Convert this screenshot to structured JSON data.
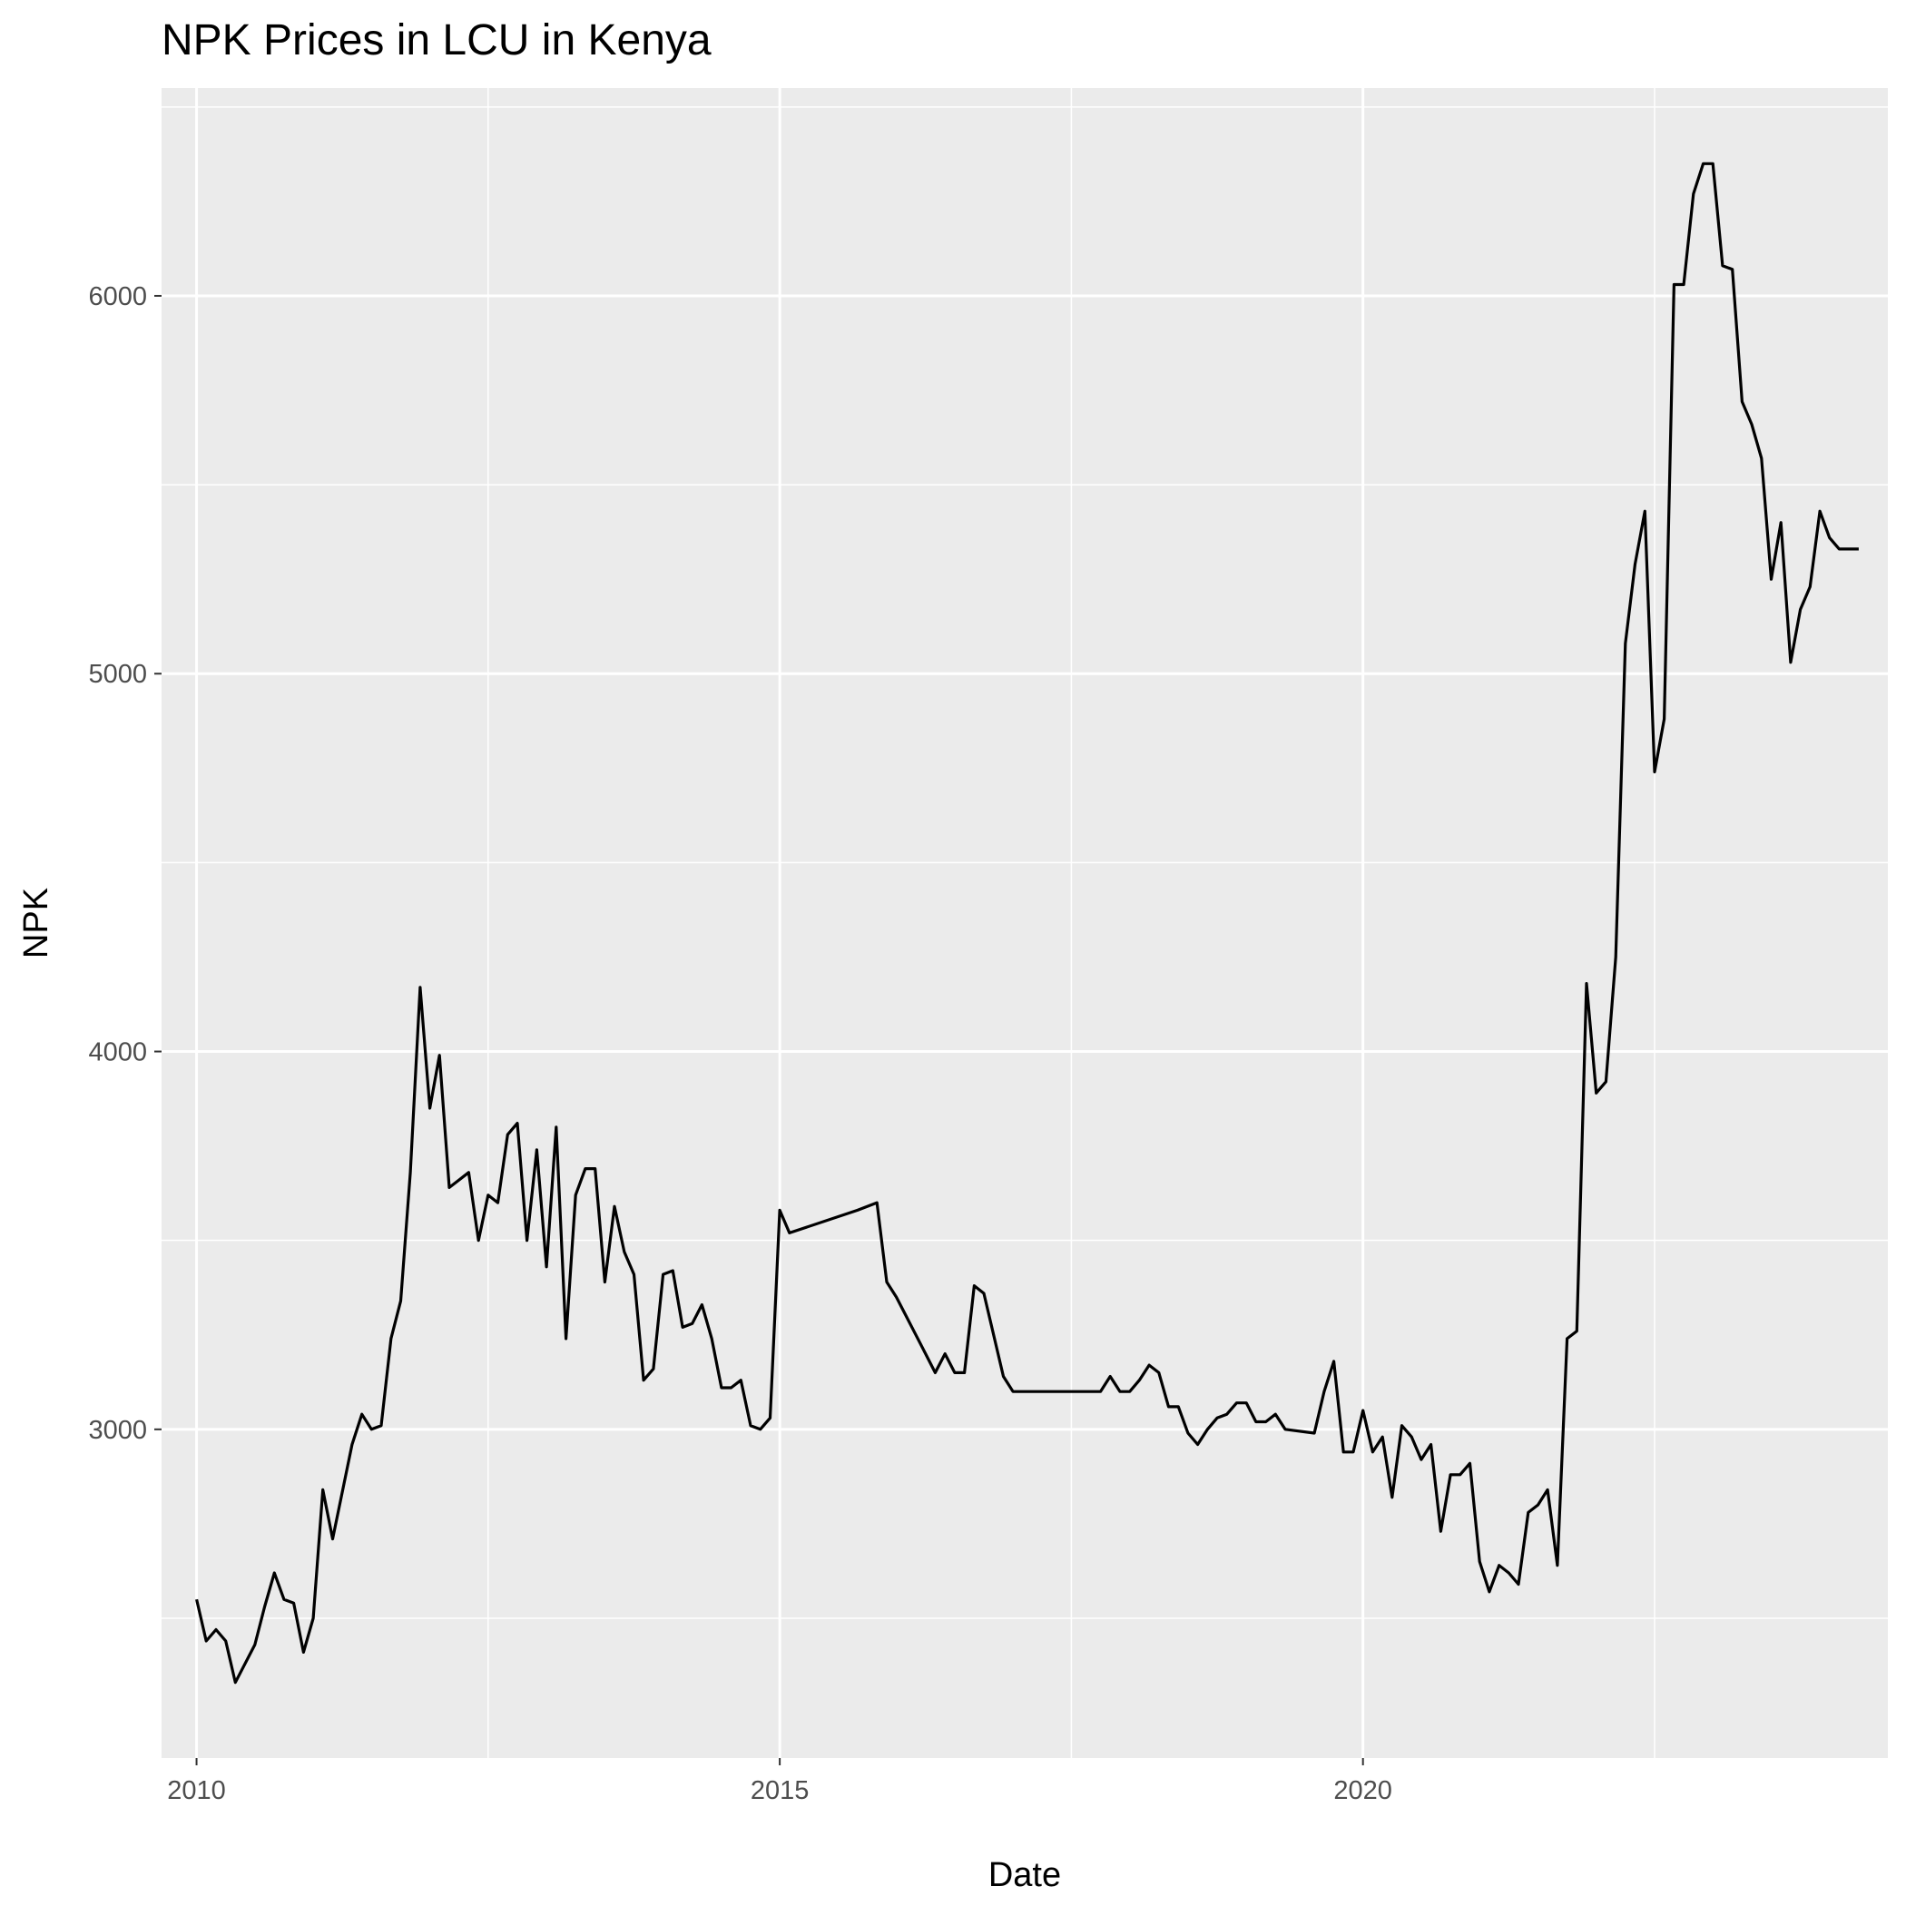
{
  "chart_data": {
    "type": "line",
    "title": "NPK Prices in LCU in Kenya",
    "xlabel": "Date",
    "ylabel": "NPK",
    "x_ticks": [
      "2010",
      "2015",
      "2020"
    ],
    "y_ticks": [
      "3000",
      "4000",
      "5000",
      "6000"
    ],
    "xlim": [
      2009.7,
      2024.5
    ],
    "ylim": [
      2130,
      6550
    ],
    "grid": true,
    "colors": {
      "panel": "#ebebeb",
      "grid": "#ffffff",
      "line": "#000000",
      "tick": "#333333"
    },
    "series": [
      {
        "x": [
          2010.0,
          2010.083,
          2010.167,
          2010.25,
          2010.333,
          2010.5,
          2010.583,
          2010.667,
          2010.75,
          2010.833,
          2010.917,
          2011.0,
          2011.083,
          2011.167,
          2011.333,
          2011.417,
          2011.5,
          2011.583,
          2011.667,
          2011.75,
          2011.833,
          2011.917,
          2012.0,
          2012.083,
          2012.167,
          2012.25,
          2012.333,
          2012.417,
          2012.5,
          2012.583,
          2012.667,
          2012.75,
          2012.833,
          2012.917,
          2013.0,
          2013.083,
          2013.167,
          2013.25,
          2013.333,
          2013.417,
          2013.5,
          2013.583,
          2013.667,
          2013.75,
          2013.833,
          2013.917,
          2014.0,
          2014.083,
          2014.167,
          2014.25,
          2014.333,
          2014.417,
          2014.5,
          2014.583,
          2014.667,
          2014.75,
          2014.833,
          2014.917,
          2015.0,
          2015.083,
          2015.667,
          2015.75,
          2015.833,
          2015.917,
          2016.0,
          2016.083,
          2016.167,
          2016.25,
          2016.333,
          2016.417,
          2016.5,
          2016.583,
          2016.667,
          2016.75,
          2016.917,
          2017.0,
          2017.083,
          2017.167,
          2017.25,
          2017.333,
          2017.75,
          2017.833,
          2017.917,
          2018.0,
          2018.083,
          2018.167,
          2018.25,
          2018.333,
          2018.417,
          2018.5,
          2018.583,
          2018.667,
          2018.75,
          2018.833,
          2018.917,
          2019.0,
          2019.083,
          2019.167,
          2019.25,
          2019.333,
          2019.583,
          2019.667,
          2019.75,
          2019.833,
          2019.917,
          2020.0,
          2020.083,
          2020.167,
          2020.25,
          2020.333,
          2020.417,
          2020.5,
          2020.583,
          2020.667,
          2020.75,
          2020.833,
          2020.917,
          2021.0,
          2021.083,
          2021.167,
          2021.25,
          2021.333,
          2021.417,
          2021.5,
          2021.583,
          2021.667,
          2021.75,
          2021.833,
          2021.917,
          2022.0,
          2022.083,
          2022.167,
          2022.25,
          2022.333,
          2022.417,
          2022.5,
          2022.583,
          2022.667,
          2022.75,
          2022.833,
          2022.917,
          2023.0,
          2023.083,
          2023.167,
          2023.25,
          2023.333,
          2023.417,
          2023.5,
          2023.583,
          2023.667,
          2023.75,
          2023.833,
          2023.917,
          2024.0,
          2024.083,
          2024.167,
          2024.25
        ],
        "y": [
          2550,
          2440,
          2470,
          2440,
          2330,
          2430,
          2530,
          2620,
          2550,
          2540,
          2410,
          2500,
          2840,
          2710,
          2960,
          3040,
          3000,
          3010,
          3240,
          3340,
          3680,
          4170,
          3850,
          3990,
          3640,
          3660,
          3680,
          3500,
          3620,
          3600,
          3780,
          3810,
          3500,
          3740,
          3430,
          3800,
          3240,
          3620,
          3690,
          3690,
          3390,
          3590,
          3470,
          3410,
          3130,
          3160,
          3410,
          3420,
          3270,
          3280,
          3330,
          3240,
          3110,
          3110,
          3130,
          3010,
          3000,
          3030,
          3580,
          3520,
          3580,
          3590,
          3600,
          3390,
          3350,
          3300,
          3250,
          3200,
          3150,
          3200,
          3150,
          3150,
          3380,
          3360,
          3140,
          3100,
          3100,
          3100,
          3100,
          3100,
          3100,
          3140,
          3100,
          3100,
          3130,
          3170,
          3150,
          3060,
          3060,
          2990,
          2960,
          3000,
          3030,
          3040,
          3070,
          3070,
          3020,
          3020,
          3040,
          3000,
          2990,
          3100,
          3180,
          2940,
          2940,
          3050,
          2940,
          2980,
          2820,
          3010,
          2980,
          2920,
          2960,
          2730,
          2880,
          2880,
          2910,
          2650,
          2570,
          2640,
          2620,
          2590,
          2780,
          2800,
          2840,
          2640,
          3240,
          3260,
          4180,
          3890,
          3920,
          4250,
          5080,
          5290,
          5430,
          4740,
          4880,
          6030,
          6030,
          6270,
          6350,
          6350,
          6080,
          6070,
          5720,
          5660,
          5570,
          5250,
          5400,
          5030,
          5170,
          5230,
          5430,
          5360,
          5330,
          5330,
          5330
        ]
      }
    ]
  }
}
